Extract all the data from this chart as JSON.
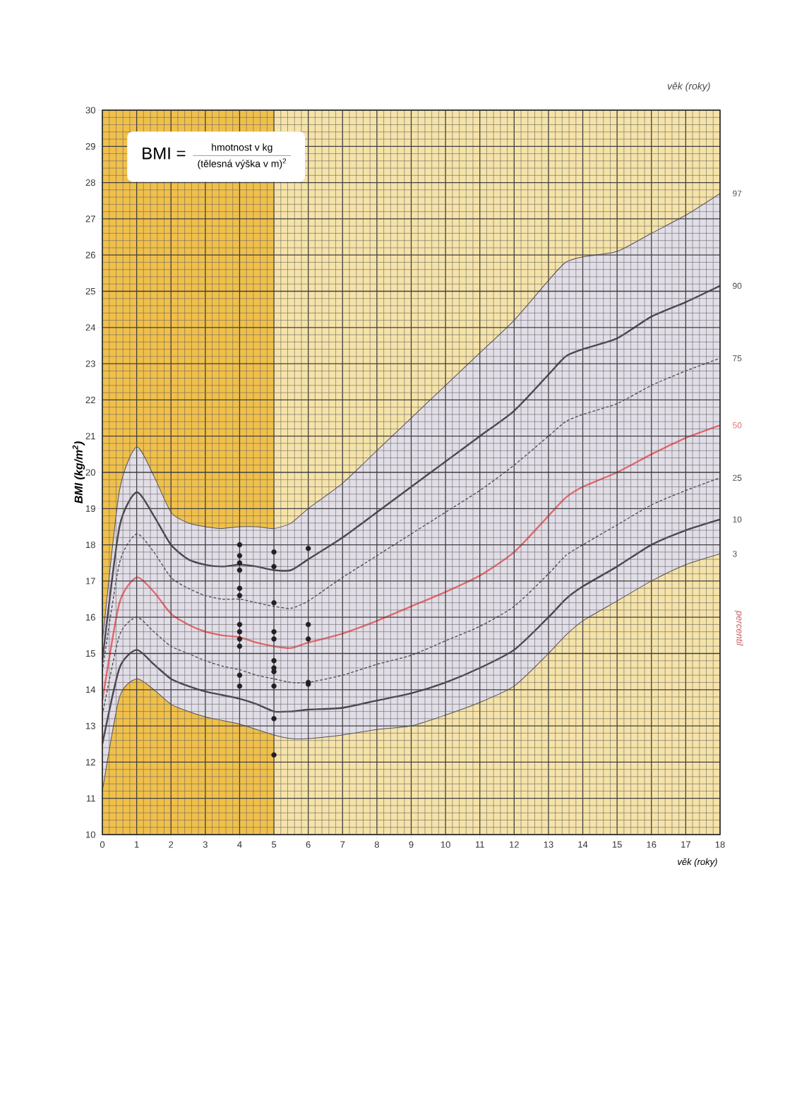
{
  "chart_data": {
    "type": "line",
    "xlabel": "věk (roky)",
    "ylabel": "BMI (kg/m$^{2}$)",
    "x": [
      0,
      0.5,
      1,
      1.5,
      2,
      2.5,
      3,
      3.5,
      4,
      4.5,
      5,
      5.5,
      6,
      7,
      8,
      9,
      10,
      11,
      12,
      13,
      13.5,
      14,
      15,
      16,
      17,
      18
    ],
    "xlim": [
      0,
      18
    ],
    "ylim": [
      10,
      30
    ],
    "xticks": [
      0,
      1,
      2,
      3,
      4,
      5,
      6,
      7,
      8,
      9,
      10,
      11,
      12,
      13,
      14,
      15,
      16,
      17,
      18
    ],
    "yticks": [
      10,
      11,
      12,
      13,
      14,
      15,
      16,
      17,
      18,
      19,
      20,
      21,
      22,
      23,
      24,
      25,
      26,
      27,
      28,
      29,
      30
    ],
    "grid": true,
    "bands": [
      {
        "axis": "x",
        "from": 0,
        "to": 5,
        "color": "#f1c04a"
      },
      {
        "axis": "x",
        "from": 5,
        "to": 18,
        "color": "#f6e3a8"
      }
    ],
    "annotations": [
      "BMI =",
      "hmotnost v kg",
      "(tělesná výška v m)$^{2}$",
      "percentil",
      "věk (roky)"
    ],
    "series": [
      {
        "name": "97",
        "color": "#555058",
        "line_style": "solid",
        "values": [
          15.3,
          19.5,
          20.7,
          19.9,
          18.9,
          18.6,
          18.5,
          18.45,
          18.5,
          18.5,
          18.45,
          18.6,
          19.0,
          19.7,
          20.6,
          21.5,
          22.4,
          23.3,
          24.2,
          25.3,
          25.8,
          25.95,
          26.1,
          26.6,
          27.1,
          27.7
        ]
      },
      {
        "name": "90",
        "color": "#4a4550",
        "line_style": "solid",
        "values": [
          14.8,
          18.5,
          19.45,
          18.8,
          18.0,
          17.6,
          17.45,
          17.4,
          17.45,
          17.4,
          17.3,
          17.3,
          17.6,
          18.2,
          18.9,
          19.6,
          20.3,
          21.0,
          21.7,
          22.7,
          23.2,
          23.4,
          23.7,
          24.3,
          24.7,
          25.15
        ]
      },
      {
        "name": "75",
        "color": "#4a4550",
        "line_style": "dashed",
        "values": [
          14.5,
          17.5,
          18.3,
          17.8,
          17.1,
          16.8,
          16.6,
          16.5,
          16.5,
          16.4,
          16.3,
          16.25,
          16.45,
          17.1,
          17.7,
          18.3,
          18.9,
          19.5,
          20.2,
          21.0,
          21.4,
          21.6,
          21.9,
          22.4,
          22.8,
          23.15
        ]
      },
      {
        "name": "50",
        "color": "#e8676b",
        "line_style": "solid",
        "values": [
          13.7,
          16.4,
          17.1,
          16.7,
          16.1,
          15.8,
          15.6,
          15.5,
          15.45,
          15.3,
          15.2,
          15.15,
          15.3,
          15.55,
          15.9,
          16.3,
          16.7,
          17.15,
          17.8,
          18.8,
          19.3,
          19.6,
          20.0,
          20.5,
          20.95,
          21.3
        ],
        "lower": [
          11.2,
          13.8,
          14.3,
          14.0,
          13.6,
          13.4,
          13.25,
          13.15,
          13.05,
          12.9,
          12.75,
          12.65,
          12.65,
          12.75,
          12.9,
          13.0,
          13.3,
          13.65,
          14.1,
          15.0,
          15.5,
          15.9,
          16.45,
          17.0,
          17.45,
          17.75
        ],
        "upper": [
          15.3,
          19.5,
          20.7,
          19.9,
          18.9,
          18.6,
          18.5,
          18.45,
          18.5,
          18.5,
          18.45,
          18.6,
          19.0,
          19.7,
          20.6,
          21.5,
          22.4,
          23.3,
          24.2,
          25.3,
          25.8,
          25.95,
          26.1,
          26.6,
          27.1,
          27.7
        ]
      },
      {
        "name": "25",
        "color": "#4a4550",
        "line_style": "dashed",
        "values": [
          13.3,
          15.5,
          16.0,
          15.6,
          15.2,
          15.0,
          14.8,
          14.65,
          14.55,
          14.4,
          14.3,
          14.2,
          14.2,
          14.4,
          14.7,
          14.95,
          15.35,
          15.75,
          16.3,
          17.2,
          17.7,
          18.0,
          18.55,
          19.1,
          19.5,
          19.85
        ]
      },
      {
        "name": "10",
        "color": "#4a4550",
        "line_style": "solid",
        "values": [
          12.5,
          14.6,
          15.1,
          14.7,
          14.3,
          14.1,
          13.95,
          13.85,
          13.75,
          13.6,
          13.4,
          13.4,
          13.45,
          13.5,
          13.7,
          13.9,
          14.2,
          14.6,
          15.1,
          16.0,
          16.5,
          16.85,
          17.4,
          18.0,
          18.4,
          18.7
        ]
      },
      {
        "name": "3",
        "color": "#555058",
        "line_style": "solid",
        "values": [
          11.2,
          13.8,
          14.3,
          14.0,
          13.6,
          13.4,
          13.25,
          13.15,
          13.05,
          12.9,
          12.75,
          12.65,
          12.65,
          12.75,
          12.9,
          13.0,
          13.3,
          13.65,
          14.1,
          15.0,
          15.5,
          15.9,
          16.45,
          17.0,
          17.45,
          17.75
        ]
      },
      {
        "type": "scatter",
        "marker": "circle",
        "color": "#222022",
        "x": [
          4,
          4,
          4,
          4,
          4,
          4,
          4,
          4,
          4,
          4,
          4,
          4,
          5,
          5,
          5,
          5,
          5,
          5,
          5,
          5,
          5,
          5,
          5,
          6,
          6,
          6,
          6,
          6
        ],
        "values": [
          18.0,
          17.7,
          17.5,
          17.3,
          16.8,
          16.6,
          15.8,
          15.6,
          15.4,
          15.2,
          14.4,
          14.1,
          17.8,
          17.4,
          16.4,
          15.6,
          15.4,
          14.8,
          14.6,
          14.5,
          14.1,
          13.2,
          12.2,
          17.9,
          15.8,
          15.4,
          14.2,
          14.15
        ]
      }
    ]
  }
}
